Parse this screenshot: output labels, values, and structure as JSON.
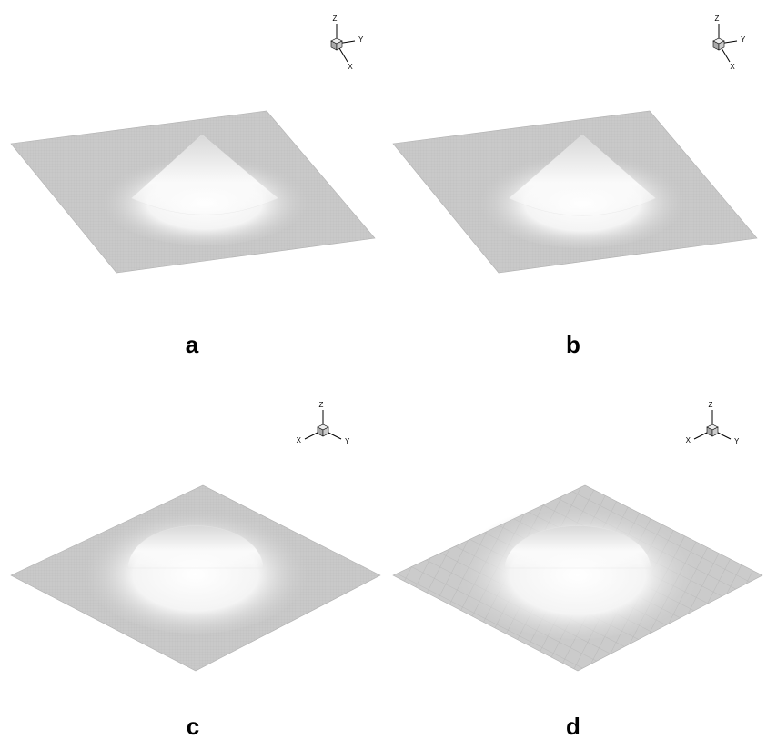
{
  "panels": [
    {
      "label": "a",
      "axes": {
        "x": "X",
        "y": "Y",
        "z": "Z"
      }
    },
    {
      "label": "b",
      "axes": {
        "x": "X",
        "y": "Y",
        "z": "Z"
      }
    },
    {
      "label": "c",
      "axes": {
        "x": "X",
        "y": "Y",
        "z": "Z"
      }
    },
    {
      "label": "d",
      "axes": {
        "x": "X",
        "y": "Y",
        "z": "Z"
      }
    }
  ]
}
